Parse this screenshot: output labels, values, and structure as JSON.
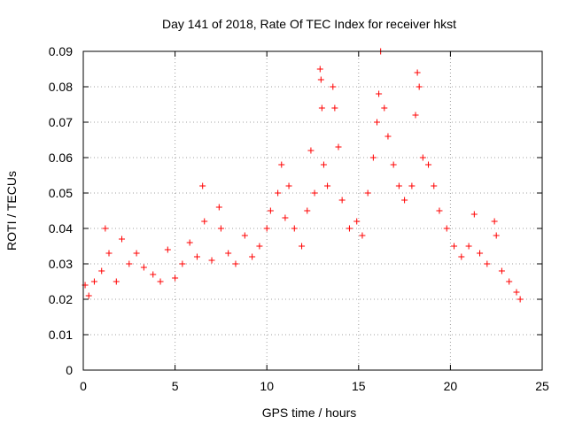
{
  "chart_data": {
    "type": "scatter",
    "title": "Day 141 of 2018, Rate Of TEC Index for receiver hkst",
    "xlabel": "GPS time / hours",
    "ylabel": "ROTI / TECUs",
    "xlim": [
      0,
      25
    ],
    "ylim": [
      0,
      0.09
    ],
    "grid": true,
    "marker": "+",
    "color": "#ff0000",
    "x_ticks": [
      0,
      5,
      10,
      15,
      20,
      25
    ],
    "x_tick_labels": [
      "0",
      "5",
      "10",
      "15",
      "20",
      "25"
    ],
    "y_ticks": [
      0,
      0.01,
      0.02,
      0.03,
      0.04,
      0.05,
      0.06,
      0.07,
      0.08,
      0.09
    ],
    "y_tick_labels": [
      "0",
      "0.01",
      "0.02",
      "0.03",
      "0.04",
      "0.05",
      "0.06",
      "0.07",
      "0.08",
      "0.09"
    ],
    "series": [
      {
        "name": "ROTI",
        "points": [
          [
            0.1,
            0.024
          ],
          [
            0.3,
            0.021
          ],
          [
            0.6,
            0.025
          ],
          [
            1.0,
            0.028
          ],
          [
            1.2,
            0.04
          ],
          [
            1.4,
            0.033
          ],
          [
            1.8,
            0.025
          ],
          [
            2.1,
            0.037
          ],
          [
            2.5,
            0.03
          ],
          [
            2.9,
            0.033
          ],
          [
            3.3,
            0.029
          ],
          [
            3.8,
            0.027
          ],
          [
            4.2,
            0.025
          ],
          [
            4.6,
            0.034
          ],
          [
            5.0,
            0.026
          ],
          [
            5.4,
            0.03
          ],
          [
            5.8,
            0.036
          ],
          [
            6.2,
            0.032
          ],
          [
            6.5,
            0.052
          ],
          [
            6.6,
            0.042
          ],
          [
            7.0,
            0.031
          ],
          [
            7.4,
            0.046
          ],
          [
            7.5,
            0.04
          ],
          [
            7.9,
            0.033
          ],
          [
            8.3,
            0.03
          ],
          [
            8.8,
            0.038
          ],
          [
            9.2,
            0.032
          ],
          [
            9.6,
            0.035
          ],
          [
            10.0,
            0.04
          ],
          [
            10.2,
            0.045
          ],
          [
            10.6,
            0.05
          ],
          [
            10.8,
            0.058
          ],
          [
            11.0,
            0.043
          ],
          [
            11.2,
            0.052
          ],
          [
            11.5,
            0.04
          ],
          [
            11.9,
            0.035
          ],
          [
            12.2,
            0.045
          ],
          [
            12.4,
            0.062
          ],
          [
            12.6,
            0.05
          ],
          [
            12.9,
            0.085
          ],
          [
            12.95,
            0.082
          ],
          [
            13.0,
            0.074
          ],
          [
            13.1,
            0.058
          ],
          [
            13.3,
            0.052
          ],
          [
            13.6,
            0.08
          ],
          [
            13.7,
            0.074
          ],
          [
            13.9,
            0.063
          ],
          [
            14.1,
            0.048
          ],
          [
            14.5,
            0.04
          ],
          [
            14.9,
            0.042
          ],
          [
            15.2,
            0.038
          ],
          [
            15.5,
            0.05
          ],
          [
            15.8,
            0.06
          ],
          [
            16.0,
            0.07
          ],
          [
            16.1,
            0.078
          ],
          [
            16.2,
            0.09
          ],
          [
            16.4,
            0.074
          ],
          [
            16.6,
            0.066
          ],
          [
            16.9,
            0.058
          ],
          [
            17.2,
            0.052
          ],
          [
            17.5,
            0.048
          ],
          [
            17.9,
            0.052
          ],
          [
            18.1,
            0.072
          ],
          [
            18.2,
            0.084
          ],
          [
            18.3,
            0.08
          ],
          [
            18.5,
            0.06
          ],
          [
            18.8,
            0.058
          ],
          [
            19.1,
            0.052
          ],
          [
            19.4,
            0.045
          ],
          [
            19.8,
            0.04
          ],
          [
            20.2,
            0.035
          ],
          [
            20.6,
            0.032
          ],
          [
            21.0,
            0.035
          ],
          [
            21.3,
            0.044
          ],
          [
            21.6,
            0.033
          ],
          [
            22.0,
            0.03
          ],
          [
            22.4,
            0.042
          ],
          [
            22.5,
            0.038
          ],
          [
            22.8,
            0.028
          ],
          [
            23.2,
            0.025
          ],
          [
            23.6,
            0.022
          ],
          [
            23.8,
            0.02
          ]
        ]
      }
    ]
  }
}
